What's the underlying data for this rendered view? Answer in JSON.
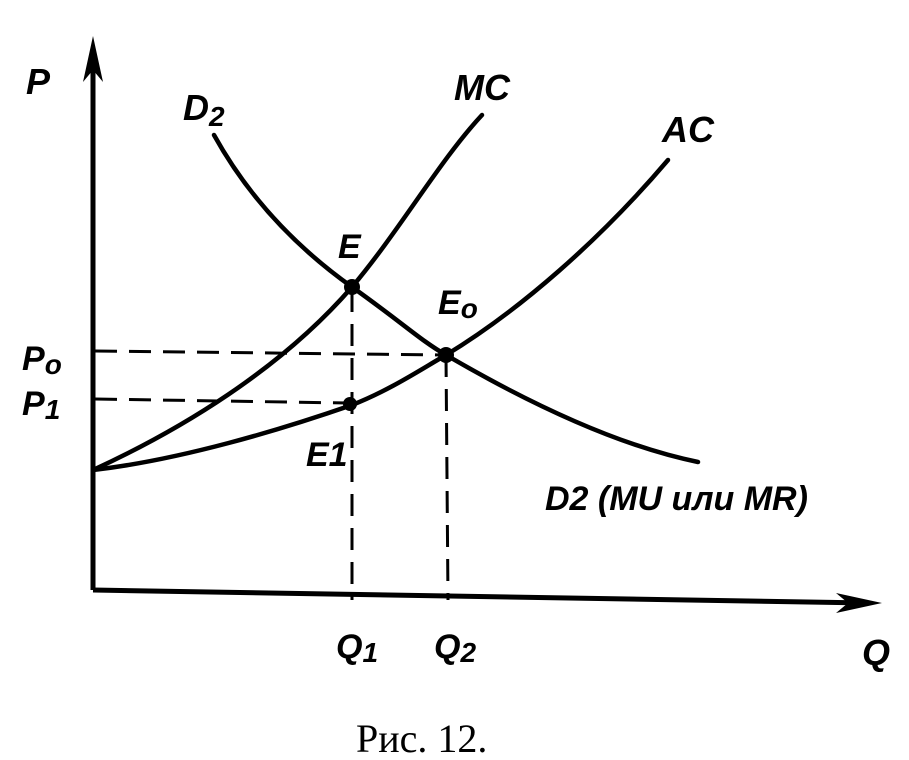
{
  "figure": {
    "axis_labels": {
      "y": "P",
      "x": "Q"
    },
    "curves": {
      "d2_top": {
        "main": "D",
        "sub": "2"
      },
      "mc": "MC",
      "ac": "AC",
      "d2_bottom": "D2 (MU или MR)"
    },
    "points": {
      "e": "E",
      "e0": {
        "main": "E",
        "sub": "o"
      },
      "e1": "E1"
    },
    "price_labels": {
      "p0": {
        "main": "P",
        "sub": "o"
      },
      "p1": {
        "main": "P",
        "sub": "1"
      }
    },
    "quantity_labels": {
      "q1": {
        "main": "Q",
        "sub": "1"
      },
      "q2": {
        "main": "Q",
        "sub": "2"
      }
    },
    "caption": "Рис. 12."
  }
}
